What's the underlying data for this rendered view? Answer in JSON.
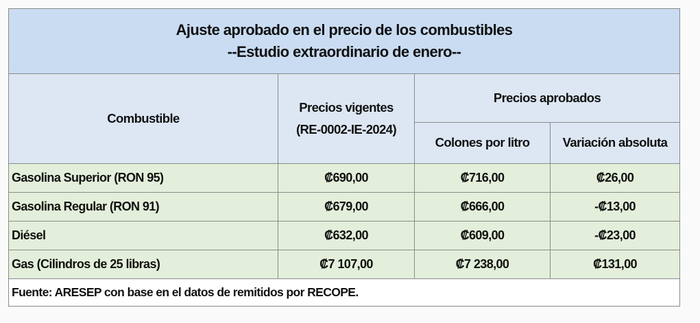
{
  "title": [
    "Ajuste aprobado en el precio de los combustibles",
    "--Estudio extraordinario de enero--"
  ],
  "header": {
    "fuel": "Combustible",
    "current": [
      "Precios vigentes",
      "(RE-0002-IE-2024)"
    ],
    "approved": "Precios aprobados",
    "approved_cols": [
      "Colones por litro",
      "Variación absoluta"
    ]
  },
  "rows": [
    [
      "Gasolina Superior (RON 95)",
      "₡690,00",
      "₡716,00",
      "₡26,00"
    ],
    [
      "Gasolina Regular  (RON 91)",
      "₡679,00",
      "₡666,00",
      "-₡13,00"
    ],
    [
      "Diésel",
      "₡632,00",
      "₡609,00",
      "-₡23,00"
    ],
    [
      "Gas (Cilindros de 25 libras)",
      "₡7 107,00",
      "₡7 238,00",
      "₡131,00"
    ]
  ],
  "footer": "Fuente: ARESEP con base en el datos de remitidos por RECOPE."
}
